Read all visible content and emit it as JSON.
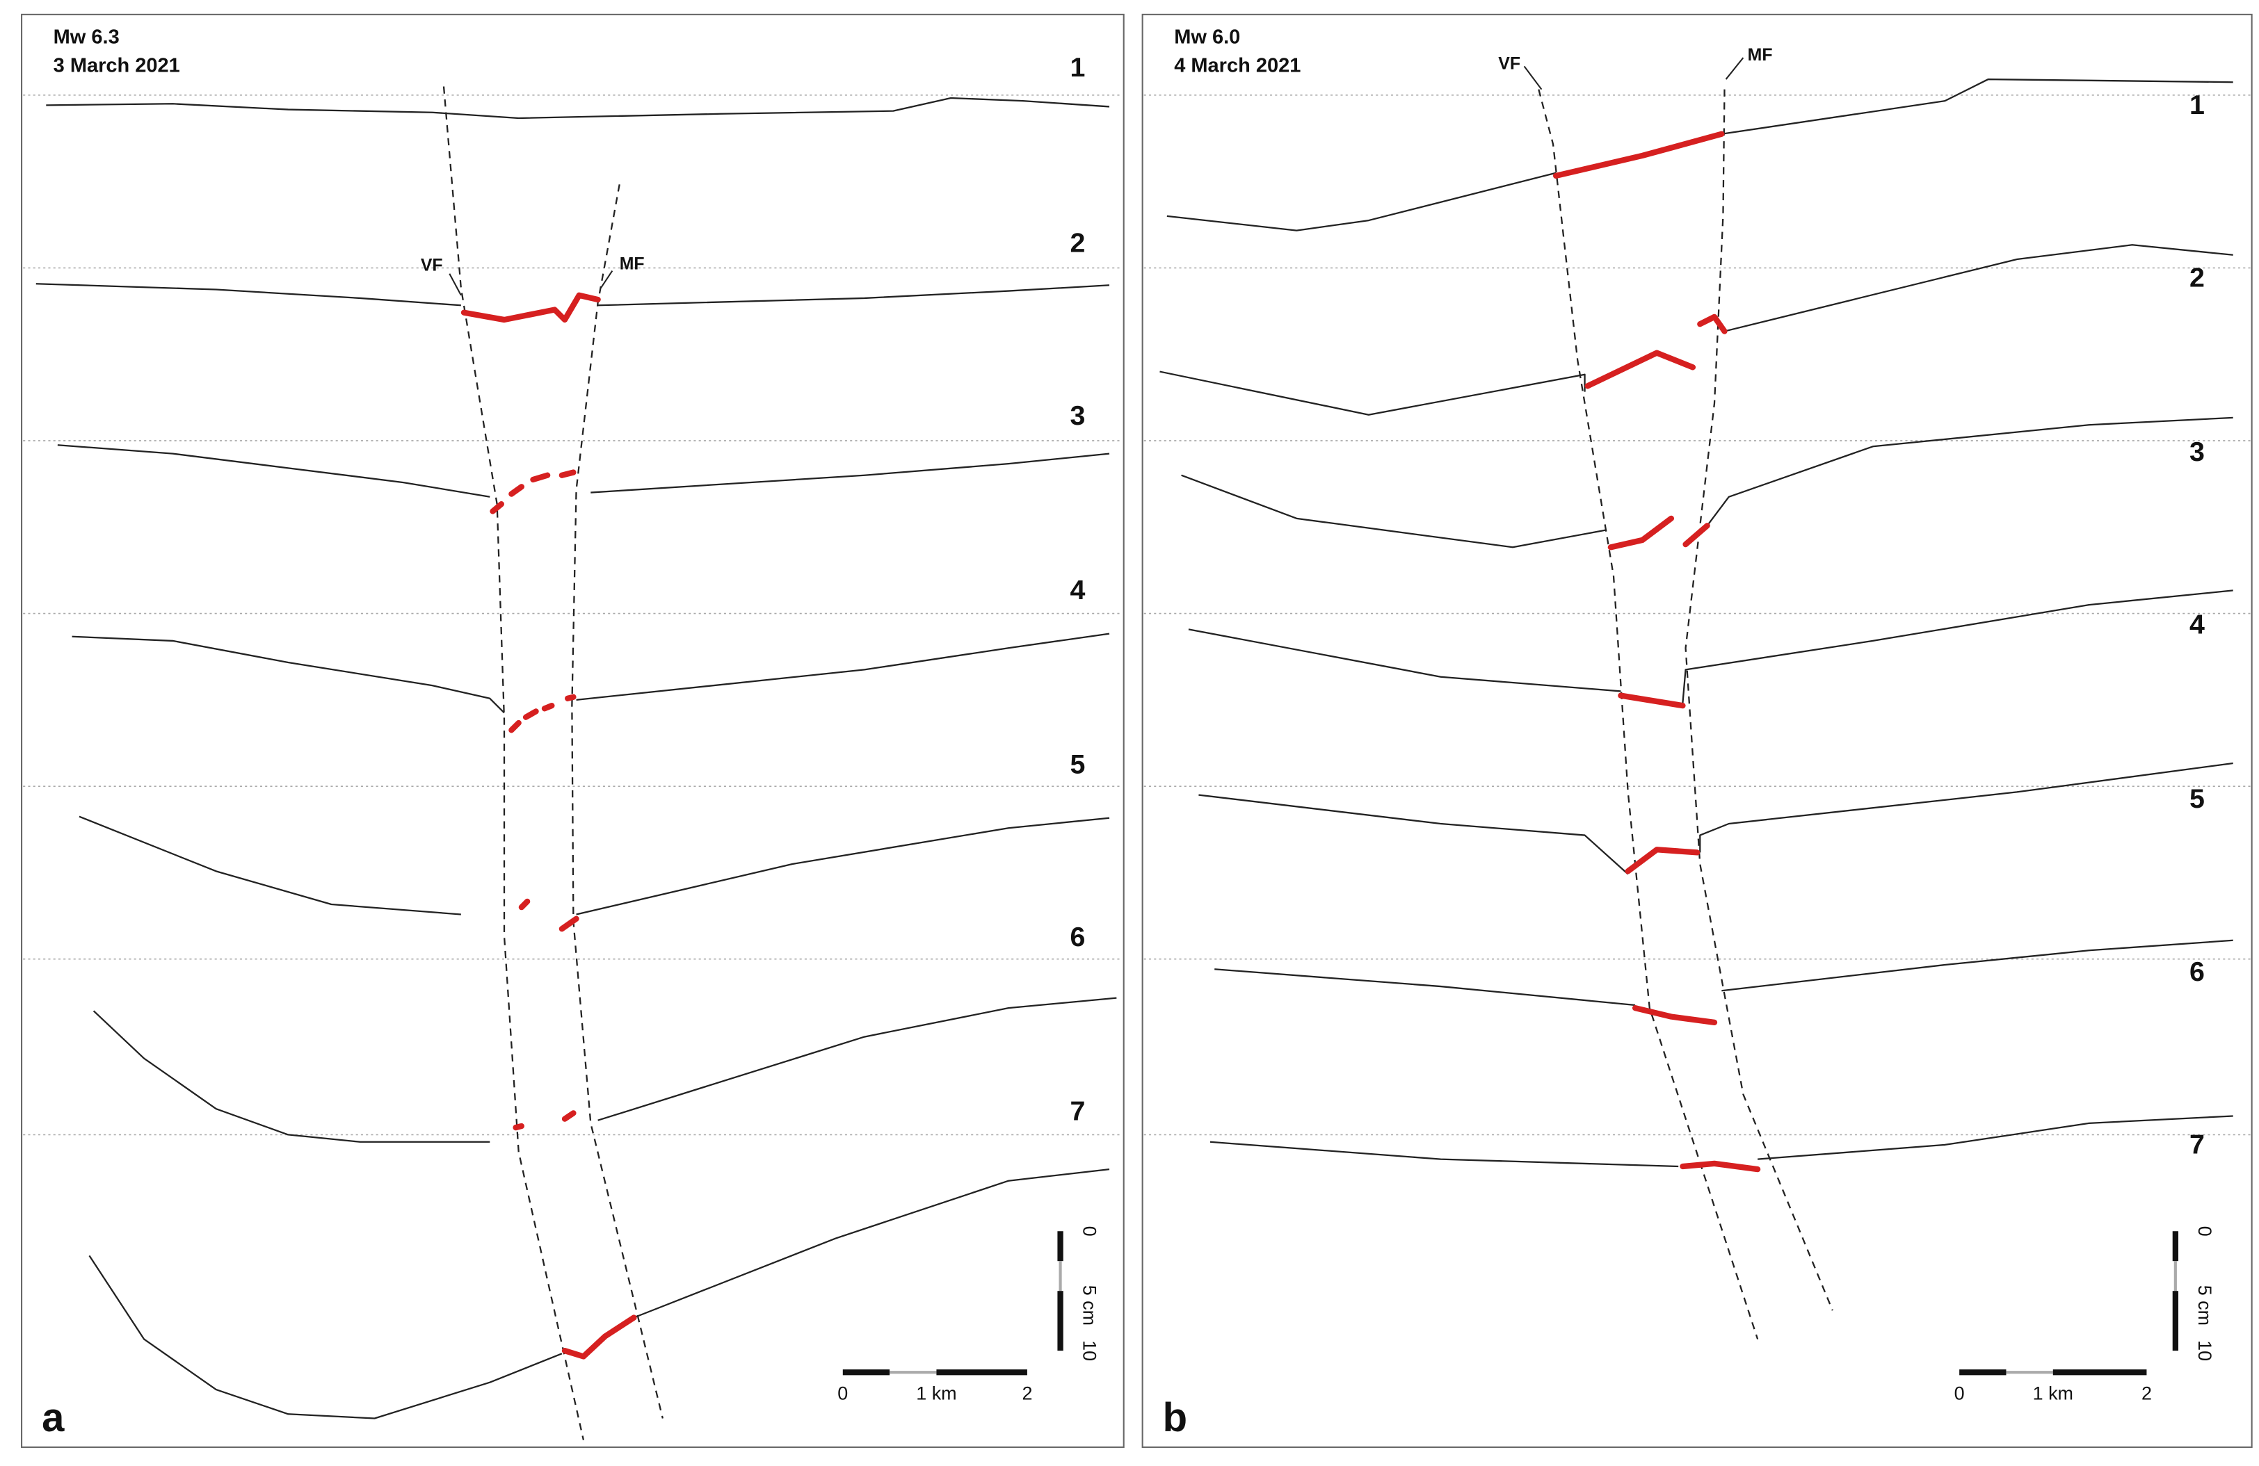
{
  "panels": [
    {
      "label": "a",
      "magnitude": "Mw 6.3",
      "date": "3 March 2021",
      "profiles": [
        "1",
        "2",
        "3",
        "4",
        "5",
        "6",
        "7"
      ],
      "faults": {
        "vf": "VF",
        "mf": "MF"
      },
      "scale_x": [
        "0",
        "1 km",
        "2"
      ],
      "scale_y": [
        "0",
        "5 cm",
        "10"
      ]
    },
    {
      "label": "b",
      "magnitude": "Mw 6.0",
      "date": "4 March 2021",
      "profiles": [
        "1",
        "2",
        "3",
        "4",
        "5",
        "6",
        "7"
      ],
      "faults": {
        "vf": "VF",
        "mf": "MF"
      },
      "scale_x": [
        "0",
        "1 km",
        "2"
      ],
      "scale_y": [
        "0",
        "5 cm",
        "10"
      ]
    }
  ]
}
